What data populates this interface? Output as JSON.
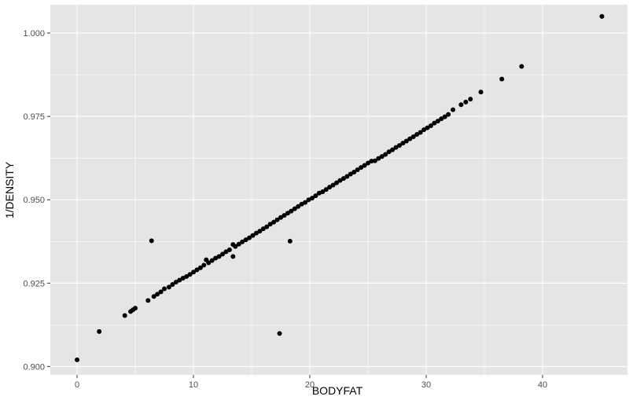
{
  "chart_data": {
    "type": "scatter",
    "xlabel": "BODYFAT",
    "ylabel": "1/DENSITY",
    "xlim": [
      -2.3,
      47.3
    ],
    "ylim": [
      0.8975,
      1.0085
    ],
    "x_ticks": [
      0,
      10,
      20,
      30,
      40
    ],
    "x_tick_labels": [
      "0",
      "10",
      "20",
      "30",
      "40"
    ],
    "y_ticks": [
      0.9,
      0.925,
      0.95,
      0.975,
      1.0
    ],
    "y_tick_labels": [
      "0.900",
      "0.925",
      "0.950",
      "0.975",
      "1.000"
    ],
    "grid": true,
    "colors": {
      "panel": "#e5e5e5",
      "grid": "#ffffff",
      "point": "#000000",
      "tick_text": "#4d4d4d"
    },
    "points": [
      [
        0.0,
        0.902
      ],
      [
        1.9,
        0.9105
      ],
      [
        4.1,
        0.9153
      ],
      [
        4.6,
        0.9165
      ],
      [
        4.8,
        0.917
      ],
      [
        5.0,
        0.9175
      ],
      [
        6.1,
        0.9198
      ],
      [
        6.4,
        0.9377
      ],
      [
        6.6,
        0.921
      ],
      [
        6.9,
        0.9217
      ],
      [
        7.2,
        0.9224
      ],
      [
        7.5,
        0.9233
      ],
      [
        7.9,
        0.9238
      ],
      [
        8.2,
        0.9246
      ],
      [
        8.5,
        0.9253
      ],
      [
        8.8,
        0.9259
      ],
      [
        9.1,
        0.9265
      ],
      [
        9.4,
        0.927
      ],
      [
        9.7,
        0.9276
      ],
      [
        10.0,
        0.9283
      ],
      [
        10.3,
        0.929
      ],
      [
        10.6,
        0.9296
      ],
      [
        10.9,
        0.9304
      ],
      [
        11.1,
        0.932
      ],
      [
        11.3,
        0.9311
      ],
      [
        11.6,
        0.9318
      ],
      [
        11.9,
        0.9325
      ],
      [
        12.2,
        0.933
      ],
      [
        12.5,
        0.9337
      ],
      [
        12.8,
        0.9344
      ],
      [
        13.1,
        0.935
      ],
      [
        13.4,
        0.933
      ],
      [
        13.4,
        0.9366
      ],
      [
        13.6,
        0.936
      ],
      [
        13.9,
        0.9367
      ],
      [
        14.2,
        0.9374
      ],
      [
        14.5,
        0.938
      ],
      [
        14.8,
        0.9386
      ],
      [
        15.1,
        0.9393
      ],
      [
        15.4,
        0.94
      ],
      [
        15.7,
        0.9406
      ],
      [
        16.0,
        0.9413
      ],
      [
        16.3,
        0.9419
      ],
      [
        16.6,
        0.9427
      ],
      [
        16.9,
        0.9433
      ],
      [
        17.2,
        0.944
      ],
      [
        17.4,
        0.9099
      ],
      [
        17.5,
        0.9447
      ],
      [
        17.8,
        0.9453
      ],
      [
        18.1,
        0.946
      ],
      [
        18.3,
        0.9376
      ],
      [
        18.4,
        0.9466
      ],
      [
        18.7,
        0.9473
      ],
      [
        19.0,
        0.948
      ],
      [
        19.3,
        0.9487
      ],
      [
        19.6,
        0.9492
      ],
      [
        19.9,
        0.95
      ],
      [
        20.2,
        0.9505
      ],
      [
        20.5,
        0.9512
      ],
      [
        20.8,
        0.952
      ],
      [
        21.1,
        0.9524
      ],
      [
        21.4,
        0.9531
      ],
      [
        21.7,
        0.9538
      ],
      [
        22.0,
        0.9544
      ],
      [
        22.3,
        0.9551
      ],
      [
        22.6,
        0.9558
      ],
      [
        22.9,
        0.9564
      ],
      [
        23.2,
        0.957
      ],
      [
        23.5,
        0.9577
      ],
      [
        23.8,
        0.9583
      ],
      [
        24.1,
        0.959
      ],
      [
        24.4,
        0.9597
      ],
      [
        24.7,
        0.9603
      ],
      [
        25.0,
        0.961
      ],
      [
        25.3,
        0.9616
      ],
      [
        25.6,
        0.9617
      ],
      [
        25.9,
        0.9624
      ],
      [
        26.2,
        0.963
      ],
      [
        26.5,
        0.9636
      ],
      [
        26.8,
        0.9644
      ],
      [
        27.1,
        0.965
      ],
      [
        27.4,
        0.9657
      ],
      [
        27.7,
        0.9663
      ],
      [
        28.0,
        0.967
      ],
      [
        28.3,
        0.9676
      ],
      [
        28.6,
        0.9683
      ],
      [
        28.9,
        0.9689
      ],
      [
        29.2,
        0.9696
      ],
      [
        29.5,
        0.9702
      ],
      [
        29.8,
        0.971
      ],
      [
        30.1,
        0.9716
      ],
      [
        30.4,
        0.9722
      ],
      [
        30.7,
        0.973
      ],
      [
        31.0,
        0.9736
      ],
      [
        31.3,
        0.9743
      ],
      [
        31.6,
        0.9749
      ],
      [
        31.9,
        0.9756
      ],
      [
        32.3,
        0.977
      ],
      [
        33.0,
        0.9785
      ],
      [
        33.4,
        0.9793
      ],
      [
        33.8,
        0.9802
      ],
      [
        34.7,
        0.9823
      ],
      [
        36.5,
        0.9862
      ],
      [
        38.2,
        0.99
      ],
      [
        45.1,
        1.005
      ]
    ]
  }
}
